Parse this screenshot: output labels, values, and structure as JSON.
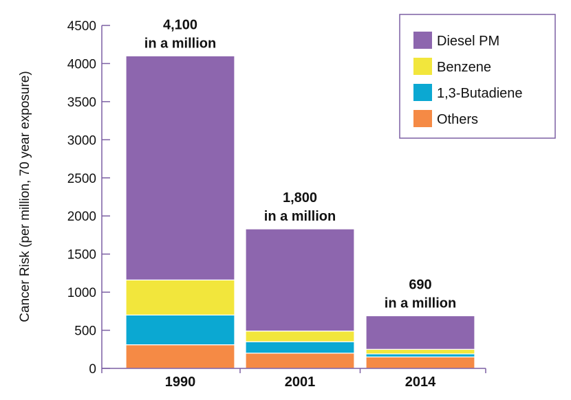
{
  "chart_data": {
    "type": "bar",
    "stacked": true,
    "categories": [
      "1990",
      "2001",
      "2014"
    ],
    "ylabel": "Cancer Risk (per million, 70 year exposure)",
    "xlabel": "",
    "ylim": [
      0,
      4500
    ],
    "yticks": [
      0,
      500,
      1000,
      1500,
      2000,
      2500,
      3000,
      3500,
      4000,
      4500
    ],
    "series": [
      {
        "name": "Others",
        "color": "#F58A45",
        "values": [
          310,
          200,
          150
        ]
      },
      {
        "name": "1,3-Butadiene",
        "color": "#0BA8D2",
        "values": [
          390,
          150,
          40
        ]
      },
      {
        "name": "Benzene",
        "color": "#F2E63C",
        "values": [
          460,
          140,
          60
        ]
      },
      {
        "name": "Diesel PM",
        "color": "#8D66AE",
        "values": [
          2940,
          1340,
          440
        ]
      }
    ],
    "bar_annotations": [
      {
        "line1": "4,100",
        "line2": "in a million"
      },
      {
        "line1": "1,800",
        "line2": "in a million"
      },
      {
        "line1": "690",
        "line2": "in a million"
      }
    ],
    "legend": {
      "placement": "top-right",
      "order": [
        "Diesel PM",
        "Benzene",
        "1,3-Butadiene",
        "Others"
      ]
    },
    "grid": false
  },
  "colors": {
    "axis": "#7B5FA3",
    "legend_border": "#7B5FA3"
  }
}
